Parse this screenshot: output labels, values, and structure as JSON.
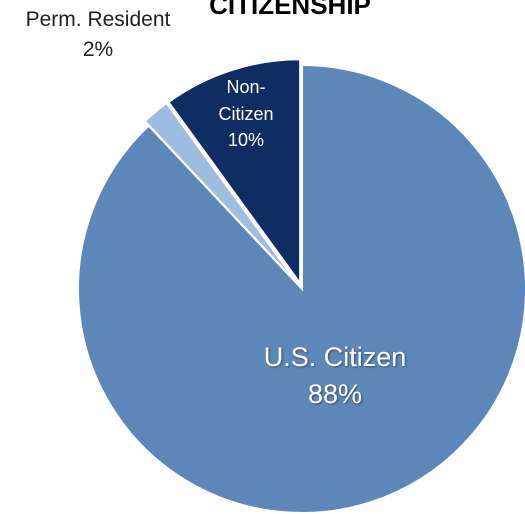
{
  "chart_data": {
    "type": "pie",
    "title": "CITIZENSHIP",
    "slices": [
      {
        "label": "U.S. Citizen",
        "value": 88,
        "value_label": "88%",
        "color": "#5e87b9",
        "exploded": false
      },
      {
        "label": "Perm. Resident",
        "value": 2,
        "value_label": "2%",
        "color": "#9dbcdf",
        "exploded": true
      },
      {
        "label": "Non-Citizen",
        "label_lines": [
          "Non-",
          "Citizen"
        ],
        "value": 10,
        "value_label": "10%",
        "color": "#0f2d62",
        "exploded": true
      }
    ]
  }
}
